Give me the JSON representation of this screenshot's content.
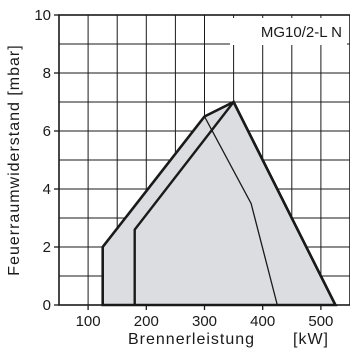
{
  "chart_data": {
    "type": "area",
    "title": "MG10/2-L N",
    "xlabel": "Brennerleistung",
    "xunit": "[kW]",
    "ylabel": "Feuerraumwiderstand [mbar]",
    "xlim": [
      50,
      550
    ],
    "ylim": [
      0,
      10
    ],
    "x_ticks": [
      100,
      200,
      300,
      400,
      500
    ],
    "y_ticks": [
      0,
      2,
      4,
      6,
      8,
      10
    ],
    "grid": true,
    "legend": "none",
    "series": [
      {
        "role": "outer-field",
        "points": [
          [
            125,
            0
          ],
          [
            125,
            2
          ],
          [
            300,
            6.5
          ],
          [
            350,
            7
          ],
          [
            525,
            0
          ]
        ]
      },
      {
        "role": "inner-field",
        "points": [
          [
            180,
            0
          ],
          [
            180,
            2.6
          ],
          [
            350,
            7
          ],
          [
            525,
            0
          ]
        ]
      },
      {
        "role": "line",
        "points": [
          [
            300,
            6.5
          ],
          [
            380,
            3.5
          ],
          [
            425,
            0
          ]
        ]
      }
    ]
  }
}
